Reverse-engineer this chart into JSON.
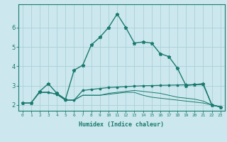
{
  "xlabel": "Humidex (Indice chaleur)",
  "x_ticks": [
    0,
    1,
    2,
    3,
    4,
    5,
    6,
    7,
    8,
    9,
    10,
    11,
    12,
    13,
    14,
    15,
    16,
    17,
    18,
    19,
    20,
    21,
    22,
    23
  ],
  "xlim": [
    -0.5,
    23.5
  ],
  "ylim": [
    1.7,
    7.2
  ],
  "y_ticks": [
    2,
    3,
    4,
    5,
    6
  ],
  "background_color": "#cce8ee",
  "grid_color": "#aad0d8",
  "line_color": "#1a7a6e",
  "line1_x": [
    0,
    1,
    2,
    3,
    4,
    5,
    6,
    7,
    8,
    9,
    10,
    11,
    12,
    13,
    14,
    15,
    16,
    17,
    18,
    19,
    20,
    21,
    22,
    23
  ],
  "line1_y": [
    2.1,
    2.1,
    2.7,
    3.1,
    2.6,
    2.3,
    3.8,
    4.05,
    5.1,
    5.5,
    6.0,
    6.7,
    6.0,
    5.2,
    5.25,
    5.2,
    4.65,
    4.5,
    3.9,
    3.0,
    3.05,
    3.1,
    2.0,
    1.9
  ],
  "line2_x": [
    0,
    1,
    2,
    3,
    4,
    5,
    6,
    7,
    8,
    9,
    10,
    11,
    12,
    13,
    14,
    15,
    16,
    17,
    18,
    19,
    20,
    21,
    22,
    23
  ],
  "line2_y": [
    2.1,
    2.1,
    2.65,
    2.65,
    2.55,
    2.25,
    2.25,
    2.75,
    2.8,
    2.85,
    2.9,
    2.92,
    2.95,
    2.97,
    2.99,
    3.0,
    3.01,
    3.02,
    3.03,
    3.04,
    3.05,
    3.05,
    2.0,
    1.9
  ],
  "line3_x": [
    2,
    3,
    4,
    5,
    6,
    7,
    8,
    9,
    10,
    11,
    12,
    13,
    14,
    15,
    16,
    17,
    18,
    19,
    20,
    21,
    22,
    23
  ],
  "line3_y": [
    2.65,
    2.65,
    2.55,
    2.25,
    2.25,
    2.5,
    2.5,
    2.5,
    2.55,
    2.6,
    2.65,
    2.65,
    2.5,
    2.4,
    2.35,
    2.3,
    2.25,
    2.2,
    2.15,
    2.1,
    2.0,
    1.9
  ],
  "line4_x": [
    2,
    3,
    4,
    5,
    6,
    7,
    8,
    9,
    10,
    11,
    12,
    13,
    14,
    15,
    16,
    17,
    18,
    19,
    20,
    21,
    22,
    23
  ],
  "line4_y": [
    2.65,
    2.65,
    2.55,
    2.25,
    2.25,
    2.5,
    2.5,
    2.5,
    2.6,
    2.65,
    2.7,
    2.75,
    2.7,
    2.65,
    2.6,
    2.5,
    2.4,
    2.35,
    2.3,
    2.2,
    2.0,
    1.9
  ]
}
